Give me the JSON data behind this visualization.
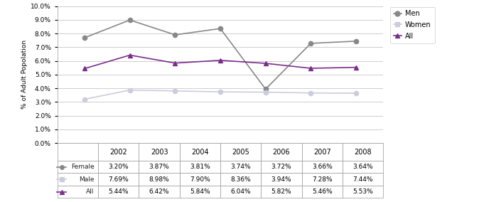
{
  "years": [
    2002,
    2003,
    2004,
    2005,
    2006,
    2007,
    2008
  ],
  "men_data": [
    0.0769,
    0.0898,
    0.079,
    0.0836,
    0.0394,
    0.0728,
    0.0744
  ],
  "women_data": [
    0.032,
    0.0387,
    0.0381,
    0.0374,
    0.0372,
    0.0366,
    0.0364
  ],
  "all_data": [
    0.0544,
    0.0642,
    0.0584,
    0.0604,
    0.0582,
    0.0546,
    0.0553
  ],
  "men_color": "#888888",
  "women_color": "#ccccdd",
  "all_color": "#7B2D8B",
  "men_label": "Men",
  "women_label": "Women",
  "all_label": "All",
  "ylabel": "% of Adult Popolation",
  "ylim": [
    0.0,
    0.1
  ],
  "yticks": [
    0.0,
    0.01,
    0.02,
    0.03,
    0.04,
    0.05,
    0.06,
    0.07,
    0.08,
    0.09,
    0.1
  ],
  "table_female_label": "Female",
  "table_male_label": "Male",
  "table_all_label": "All",
  "table_female": [
    "3.20%",
    "3.87%",
    "3.81%",
    "3.74%",
    "3.72%",
    "3.66%",
    "3.64%"
  ],
  "table_male": [
    "7.69%",
    "8.98%",
    "7.90%",
    "8.36%",
    "3.94%",
    "7.28%",
    "7.44%"
  ],
  "table_all": [
    "5.44%",
    "6.42%",
    "5.84%",
    "6.04%",
    "5.82%",
    "5.46%",
    "5.53%"
  ]
}
